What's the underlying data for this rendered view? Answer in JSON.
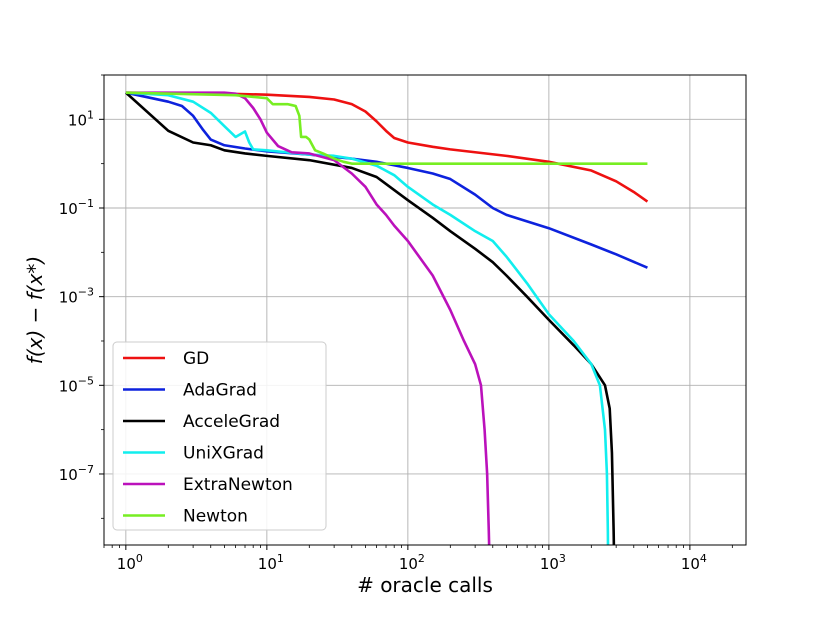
{
  "chart_data": {
    "type": "line",
    "title": "",
    "xlabel": "# oracle calls",
    "ylabel": "f(x) − f(x*)",
    "x_scale": "log",
    "y_scale": "log",
    "xlim": [
      0.7,
      25000
    ],
    "ylim": [
      2.5e-09,
      100
    ],
    "grid": true,
    "legend_position": "lower-left",
    "x_ticks": [
      {
        "value": 1,
        "base": "10",
        "exp": "0"
      },
      {
        "value": 10,
        "base": "10",
        "exp": "1"
      },
      {
        "value": 100,
        "base": "10",
        "exp": "2"
      },
      {
        "value": 1000,
        "base": "10",
        "exp": "3"
      },
      {
        "value": 10000,
        "base": "10",
        "exp": "4"
      }
    ],
    "y_ticks": [
      {
        "value": 10,
        "base": "10",
        "exp": "1"
      },
      {
        "value": 0.1,
        "base": "10",
        "exp": "−1"
      },
      {
        "value": 0.001,
        "base": "10",
        "exp": "−3"
      },
      {
        "value": 1e-05,
        "base": "10",
        "exp": "−5"
      },
      {
        "value": 1e-07,
        "base": "10",
        "exp": "−7"
      }
    ],
    "series": [
      {
        "name": "GD",
        "color": "#ee1111",
        "points": [
          [
            1,
            40
          ],
          [
            5,
            38
          ],
          [
            10,
            36
          ],
          [
            20,
            32
          ],
          [
            30,
            28
          ],
          [
            40,
            22
          ],
          [
            50,
            15
          ],
          [
            60,
            9
          ],
          [
            70,
            5.5
          ],
          [
            80,
            3.8
          ],
          [
            100,
            3
          ],
          [
            150,
            2.4
          ],
          [
            200,
            2.1
          ],
          [
            500,
            1.5
          ],
          [
            1000,
            1.1
          ],
          [
            2000,
            0.7
          ],
          [
            3000,
            0.4
          ],
          [
            4000,
            0.23
          ],
          [
            5000,
            0.14
          ]
        ]
      },
      {
        "name": "AdaGrad",
        "color": "#0d22dd",
        "points": [
          [
            1,
            40
          ],
          [
            2,
            25
          ],
          [
            2.5,
            20
          ],
          [
            3,
            12
          ],
          [
            3.5,
            6
          ],
          [
            4,
            3.5
          ],
          [
            5,
            2.6
          ],
          [
            7,
            2.2
          ],
          [
            10,
            1.9
          ],
          [
            20,
            1.6
          ],
          [
            40,
            1.3
          ],
          [
            60,
            1.1
          ],
          [
            100,
            0.8
          ],
          [
            150,
            0.6
          ],
          [
            200,
            0.45
          ],
          [
            300,
            0.2
          ],
          [
            400,
            0.1
          ],
          [
            500,
            0.07
          ],
          [
            700,
            0.05
          ],
          [
            1000,
            0.035
          ],
          [
            2000,
            0.015
          ],
          [
            3000,
            0.009
          ],
          [
            5000,
            0.0045
          ]
        ]
      },
      {
        "name": "AcceleGrad",
        "color": "#000000",
        "points": [
          [
            1,
            40
          ],
          [
            2,
            5.5
          ],
          [
            3,
            3
          ],
          [
            4,
            2.6
          ],
          [
            5,
            2
          ],
          [
            7,
            1.7
          ],
          [
            10,
            1.5
          ],
          [
            20,
            1.2
          ],
          [
            40,
            0.8
          ],
          [
            60,
            0.5
          ],
          [
            100,
            0.15
          ],
          [
            150,
            0.06
          ],
          [
            200,
            0.03
          ],
          [
            300,
            0.012
          ],
          [
            400,
            0.006
          ],
          [
            500,
            0.003
          ],
          [
            700,
            0.001
          ],
          [
            1000,
            0.0003
          ],
          [
            1500,
            8e-05
          ],
          [
            2000,
            3e-05
          ],
          [
            2500,
            1e-05
          ],
          [
            2700,
            3e-06
          ],
          [
            2800,
            3e-07
          ],
          [
            2880,
            5e-09
          ],
          [
            2890,
            2.5e-09
          ]
        ]
      },
      {
        "name": "UniXGrad",
        "color": "#11eeee",
        "points": [
          [
            1,
            40
          ],
          [
            2,
            35
          ],
          [
            3,
            25
          ],
          [
            4,
            14
          ],
          [
            5,
            7
          ],
          [
            6,
            4
          ],
          [
            7,
            5.3
          ],
          [
            7.5,
            3
          ],
          [
            8,
            2.1
          ],
          [
            10,
            2
          ],
          [
            20,
            1.6
          ],
          [
            30,
            1.5
          ],
          [
            40,
            1.3
          ],
          [
            60,
            0.9
          ],
          [
            80,
            0.55
          ],
          [
            100,
            0.3
          ],
          [
            150,
            0.12
          ],
          [
            200,
            0.07
          ],
          [
            300,
            0.03
          ],
          [
            400,
            0.018
          ],
          [
            500,
            0.008
          ],
          [
            700,
            0.002
          ],
          [
            1000,
            0.0004
          ],
          [
            1500,
            0.0001
          ],
          [
            2000,
            3e-05
          ],
          [
            2300,
            1e-05
          ],
          [
            2500,
            1e-06
          ],
          [
            2580,
            1e-07
          ],
          [
            2620,
            5e-09
          ],
          [
            2625,
            2.5e-09
          ]
        ]
      },
      {
        "name": "ExtraNewton",
        "color": "#bb11bb",
        "points": [
          [
            1,
            40
          ],
          [
            5,
            40
          ],
          [
            6,
            38
          ],
          [
            7,
            30
          ],
          [
            8,
            18
          ],
          [
            9,
            10
          ],
          [
            10,
            5
          ],
          [
            12,
            2.5
          ],
          [
            15,
            1.8
          ],
          [
            20,
            1.7
          ],
          [
            30,
            1.2
          ],
          [
            40,
            0.6
          ],
          [
            50,
            0.3
          ],
          [
            60,
            0.12
          ],
          [
            70,
            0.07
          ],
          [
            80,
            0.04
          ],
          [
            100,
            0.018
          ],
          [
            150,
            0.003
          ],
          [
            200,
            0.0005
          ],
          [
            250,
            0.0001
          ],
          [
            300,
            3e-05
          ],
          [
            330,
            1e-05
          ],
          [
            350,
            1e-06
          ],
          [
            365,
            1e-07
          ],
          [
            375,
            5e-09
          ],
          [
            377,
            2.5e-09
          ]
        ]
      },
      {
        "name": "Newton",
        "color": "#77ee22",
        "points": [
          [
            1,
            40
          ],
          [
            6,
            35
          ],
          [
            10,
            30
          ],
          [
            11,
            22
          ],
          [
            14,
            22
          ],
          [
            15,
            21
          ],
          [
            16,
            20
          ],
          [
            17,
            12
          ],
          [
            17.5,
            4
          ],
          [
            19,
            4
          ],
          [
            20,
            3.5
          ],
          [
            22,
            2
          ],
          [
            25,
            1.7
          ],
          [
            30,
            1.3
          ],
          [
            35,
            1.1
          ],
          [
            40,
            1
          ],
          [
            50,
            1
          ],
          [
            100,
            1
          ],
          [
            500,
            1
          ],
          [
            1000,
            1
          ],
          [
            2000,
            1
          ],
          [
            5000,
            1
          ]
        ]
      }
    ]
  }
}
